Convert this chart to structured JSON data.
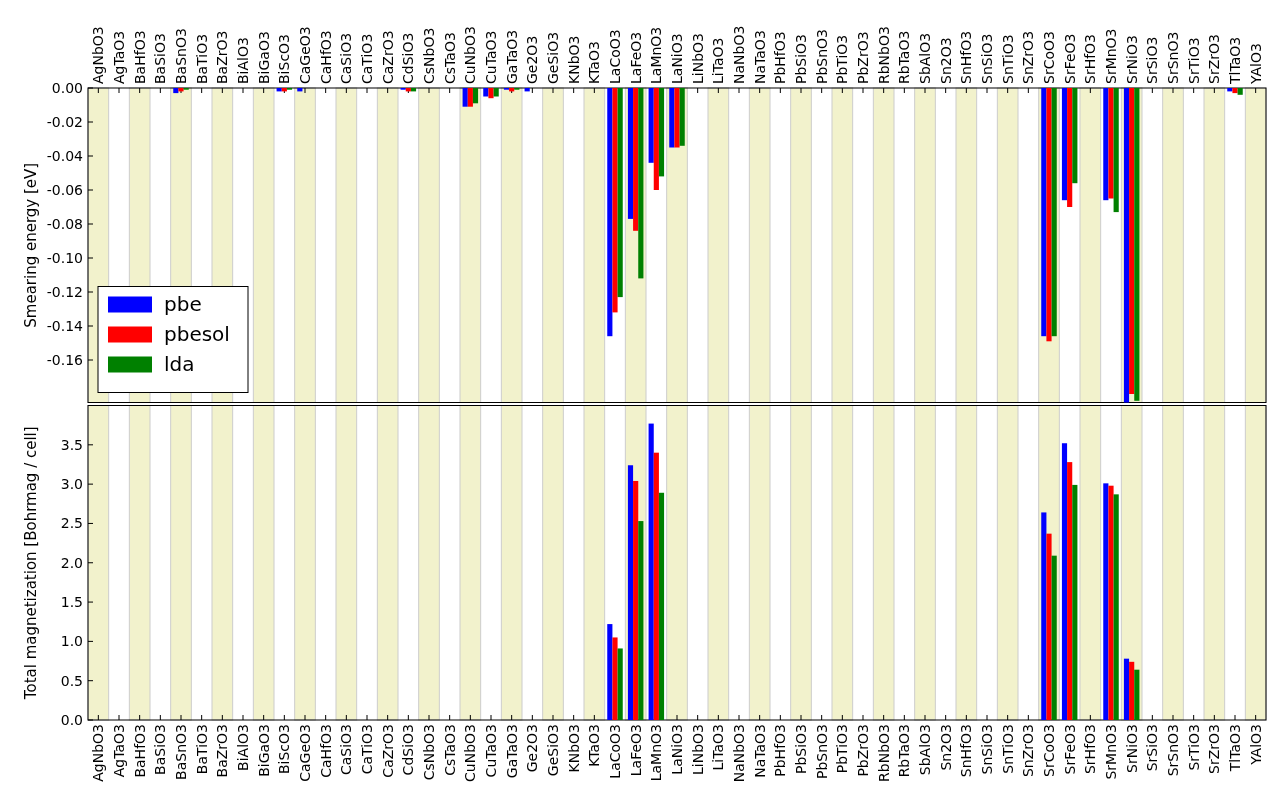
{
  "chart_data": [
    {
      "type": "bar",
      "ylabel": "Smearing energy [eV]",
      "categories": [
        "AgNbO3",
        "AgTaO3",
        "BaHfO3",
        "BaSiO3",
        "BaSnO3",
        "BaTiO3",
        "BaZrO3",
        "BiAlO3",
        "BiGaO3",
        "BiScO3",
        "CaGeO3",
        "CaHfO3",
        "CaSiO3",
        "CaTiO3",
        "CaZrO3",
        "CdSiO3",
        "CsNbO3",
        "CsTaO3",
        "CuNbO3",
        "CuTaO3",
        "GaTaO3",
        "Ge2O3",
        "GeSiO3",
        "KNbO3",
        "KTaO3",
        "LaCoO3",
        "LaFeO3",
        "LaMnO3",
        "LaNiO3",
        "LiNbO3",
        "LiTaO3",
        "NaNbO3",
        "NaTaO3",
        "PbHfO3",
        "PbSiO3",
        "PbSnO3",
        "PbTiO3",
        "PbZrO3",
        "RbNbO3",
        "RbTaO3",
        "SbAlO3",
        "Sn2O3",
        "SnHfO3",
        "SnSiO3",
        "SnTiO3",
        "SnZrO3",
        "SrCoO3",
        "SrFeO3",
        "SrHfO3",
        "SrMnO3",
        "SrNiO3",
        "SrSiO3",
        "SrSnO3",
        "SrTiO3",
        "SrZrO3",
        "TlTaO3",
        "YAlO3"
      ],
      "series": [
        {
          "name": "pbe",
          "color": "#0000ff",
          "values": [
            0,
            0,
            0,
            0,
            -0.003,
            0,
            0,
            0,
            0,
            -0.002,
            -0.002,
            0,
            0,
            0,
            0,
            -0.001,
            0,
            0,
            -0.011,
            -0.005,
            -0.001,
            -0.002,
            0,
            0,
            0,
            -0.146,
            -0.077,
            -0.044,
            -0.035,
            0,
            0,
            0,
            0,
            0,
            0,
            0,
            0,
            0,
            0,
            0,
            0,
            0,
            0,
            0,
            0,
            0,
            -0.146,
            -0.066,
            0,
            -0.066,
            -0.185,
            0,
            0,
            0,
            0,
            -0.002,
            0
          ]
        },
        {
          "name": "pbesol",
          "color": "#ff0000",
          "values": [
            0,
            0,
            0,
            0,
            -0.002,
            0,
            0,
            0,
            0,
            -0.002,
            0,
            0,
            0,
            0,
            0,
            -0.002,
            0,
            0,
            -0.011,
            -0.006,
            -0.002,
            0,
            0,
            0,
            0,
            -0.132,
            -0.084,
            -0.06,
            -0.035,
            0,
            0,
            0,
            0,
            0,
            0,
            0,
            0,
            0,
            0,
            0,
            0,
            0,
            0,
            0,
            0,
            0,
            -0.149,
            -0.07,
            0,
            -0.065,
            -0.18,
            0,
            0,
            0,
            0,
            -0.003,
            0
          ]
        },
        {
          "name": "lda",
          "color": "#008000",
          "values": [
            0,
            0,
            0,
            0,
            -0.001,
            0,
            0,
            0,
            0,
            -0.001,
            0,
            0,
            0,
            0,
            0,
            -0.002,
            0,
            0,
            -0.009,
            -0.005,
            -0.001,
            0,
            0,
            0,
            0,
            -0.123,
            -0.112,
            -0.052,
            -0.034,
            0,
            0,
            0,
            0,
            0,
            0,
            0,
            0,
            0,
            0,
            0,
            0,
            0,
            0,
            0,
            0,
            0,
            -0.146,
            -0.056,
            0,
            -0.073,
            -0.184,
            0,
            0,
            0,
            0,
            -0.004,
            0
          ]
        }
      ],
      "ylim": [
        -0.185,
        0
      ],
      "yticks": [
        {
          "value": -0.16,
          "label": "-0.16"
        },
        {
          "value": -0.14,
          "label": "-0.14"
        },
        {
          "value": -0.12,
          "label": "-0.12"
        },
        {
          "value": -0.1,
          "label": "-0.10"
        },
        {
          "value": -0.08,
          "label": "-0.08"
        },
        {
          "value": -0.06,
          "label": "-0.06"
        },
        {
          "value": -0.04,
          "label": "-0.04"
        },
        {
          "value": -0.02,
          "label": "-0.02"
        },
        {
          "value": 0,
          "label": "0.00"
        }
      ],
      "legend": "bottom left",
      "bands": [
        {
          "axis": "x",
          "from": "AgNbO3",
          "to": "AgNbO3",
          "color": "#f2f2cc"
        },
        {
          "axis": "x",
          "from": "BaHfO3",
          "to": "BaHfO3",
          "color": "#f2f2cc"
        },
        {
          "axis": "x",
          "from": "BaSnO3",
          "to": "BaSnO3",
          "color": "#f2f2cc"
        },
        {
          "axis": "x",
          "from": "BaZrO3",
          "to": "BaZrO3",
          "color": "#f2f2cc"
        },
        {
          "axis": "x",
          "from": "BiGaO3",
          "to": "BiGaO3",
          "color": "#f2f2cc"
        },
        {
          "axis": "x",
          "from": "CaGeO3",
          "to": "CaGeO3",
          "color": "#f2f2cc"
        },
        {
          "axis": "x",
          "from": "CaSiO3",
          "to": "CaSiO3",
          "color": "#f2f2cc"
        },
        {
          "axis": "x",
          "from": "CaZrO3",
          "to": "CaZrO3",
          "color": "#f2f2cc"
        },
        {
          "axis": "x",
          "from": "CsNbO3",
          "to": "CsNbO3",
          "color": "#f2f2cc"
        },
        {
          "axis": "x",
          "from": "CuNbO3",
          "to": "CuNbO3",
          "color": "#f2f2cc"
        },
        {
          "axis": "x",
          "from": "GaTaO3",
          "to": "GaTaO3",
          "color": "#f2f2cc"
        },
        {
          "axis": "x",
          "from": "GeSiO3",
          "to": "GeSiO3",
          "color": "#f2f2cc"
        },
        {
          "axis": "x",
          "from": "KTaO3",
          "to": "KTaO3",
          "color": "#f2f2cc"
        },
        {
          "axis": "x",
          "from": "LaFeO3",
          "to": "LaFeO3",
          "color": "#f2f2cc"
        },
        {
          "axis": "x",
          "from": "LaNiO3",
          "to": "LaNiO3",
          "color": "#f2f2cc"
        },
        {
          "axis": "x",
          "from": "LiTaO3",
          "to": "LiTaO3",
          "color": "#f2f2cc"
        },
        {
          "axis": "x",
          "from": "NaTaO3",
          "to": "NaTaO3",
          "color": "#f2f2cc"
        },
        {
          "axis": "x",
          "from": "PbSiO3",
          "to": "PbSiO3",
          "color": "#f2f2cc"
        },
        {
          "axis": "x",
          "from": "PbTiO3",
          "to": "PbTiO3",
          "color": "#f2f2cc"
        },
        {
          "axis": "x",
          "from": "RbNbO3",
          "to": "RbNbO3",
          "color": "#f2f2cc"
        },
        {
          "axis": "x",
          "from": "SbAlO3",
          "to": "SbAlO3",
          "color": "#f2f2cc"
        },
        {
          "axis": "x",
          "from": "SnHfO3",
          "to": "SnHfO3",
          "color": "#f2f2cc"
        },
        {
          "axis": "x",
          "from": "SnTiO3",
          "to": "SnTiO3",
          "color": "#f2f2cc"
        },
        {
          "axis": "x",
          "from": "SrCoO3",
          "to": "SrCoO3",
          "color": "#f2f2cc"
        },
        {
          "axis": "x",
          "from": "SrHfO3",
          "to": "SrHfO3",
          "color": "#f2f2cc"
        },
        {
          "axis": "x",
          "from": "SrNiO3",
          "to": "SrNiO3",
          "color": "#f2f2cc"
        },
        {
          "axis": "x",
          "from": "SrSnO3",
          "to": "SrSnO3",
          "color": "#f2f2cc"
        },
        {
          "axis": "x",
          "from": "SrZrO3",
          "to": "SrZrO3",
          "color": "#f2f2cc"
        },
        {
          "axis": "x",
          "from": "YAlO3",
          "to": "YAlO3",
          "color": "#f2f2cc"
        }
      ]
    },
    {
      "type": "bar",
      "ylabel": "Total magnetization [Bohrmag / cell]",
      "categories": [
        "AgNbO3",
        "AgTaO3",
        "BaHfO3",
        "BaSiO3",
        "BaSnO3",
        "BaTiO3",
        "BaZrO3",
        "BiAlO3",
        "BiGaO3",
        "BiScO3",
        "CaGeO3",
        "CaHfO3",
        "CaSiO3",
        "CaTiO3",
        "CaZrO3",
        "CdSiO3",
        "CsNbO3",
        "CsTaO3",
        "CuNbO3",
        "CuTaO3",
        "GaTaO3",
        "Ge2O3",
        "GeSiO3",
        "KNbO3",
        "KTaO3",
        "LaCoO3",
        "LaFeO3",
        "LaMnO3",
        "LaNiO3",
        "LiNbO3",
        "LiTaO3",
        "NaNbO3",
        "NaTaO3",
        "PbHfO3",
        "PbSiO3",
        "PbSnO3",
        "PbTiO3",
        "PbZrO3",
        "RbNbO3",
        "RbTaO3",
        "SbAlO3",
        "Sn2O3",
        "SnHfO3",
        "SnSiO3",
        "SnTiO3",
        "SnZrO3",
        "SrCoO3",
        "SrFeO3",
        "SrHfO3",
        "SrMnO3",
        "SrNiO3",
        "SrSiO3",
        "SrSnO3",
        "SrTiO3",
        "SrZrO3",
        "TlTaO3",
        "YAlO3"
      ],
      "series": [
        {
          "color": "#0000ff",
          "values": [
            0,
            0,
            0,
            0,
            0,
            0,
            0,
            0,
            0,
            0,
            0,
            0,
            0,
            0,
            0,
            0,
            0,
            0,
            0,
            0,
            0,
            0,
            0,
            0,
            0,
            1.22,
            3.24,
            3.77,
            0,
            0,
            0,
            0,
            0,
            0,
            0,
            0,
            0,
            0,
            0,
            0,
            0,
            0,
            0,
            0,
            0,
            0,
            2.64,
            3.52,
            0,
            3.01,
            0.78,
            0,
            0,
            0,
            0,
            0,
            0
          ]
        },
        {
          "color": "#ff0000",
          "values": [
            0,
            0,
            0,
            0,
            0,
            0,
            0,
            0,
            0,
            0,
            0,
            0,
            0,
            0,
            0,
            0,
            0,
            0,
            0,
            0,
            0,
            0,
            0,
            0,
            0,
            1.05,
            3.04,
            3.4,
            0,
            0,
            0,
            0,
            0,
            0,
            0,
            0,
            0,
            0,
            0,
            0,
            0,
            0,
            0,
            0,
            0,
            0,
            2.37,
            3.28,
            0,
            2.98,
            0.74,
            0,
            0,
            0,
            0,
            0,
            0
          ]
        },
        {
          "color": "#008000",
          "values": [
            0,
            0,
            0,
            0,
            0,
            0,
            0,
            0,
            0,
            0,
            0,
            0,
            0,
            0,
            0,
            0,
            0,
            0,
            0,
            0,
            0,
            0,
            0,
            0,
            0,
            0.91,
            2.53,
            2.89,
            0,
            0,
            0,
            0,
            0,
            0,
            0,
            0,
            0,
            0,
            0,
            0,
            0,
            0,
            0,
            0,
            0,
            0,
            2.09,
            2.99,
            0,
            2.87,
            0.64,
            0,
            0,
            0,
            0,
            0,
            0
          ]
        }
      ],
      "ylim": [
        0,
        4.0
      ],
      "yticks": [
        {
          "value": 0,
          "label": "0.0"
        },
        {
          "value": 0.5,
          "label": "0.5"
        },
        {
          "value": 1,
          "label": "1.0"
        },
        {
          "value": 1.5,
          "label": "1.5"
        },
        {
          "value": 2,
          "label": "2.0"
        },
        {
          "value": 2.5,
          "label": "2.5"
        },
        {
          "value": 3,
          "label": "3.0"
        },
        {
          "value": 3.5,
          "label": "3.5"
        }
      ],
      "bands": [
        {
          "axis": "x",
          "from": "AgNbO3",
          "to": "AgNbO3",
          "color": "#f2f2cc"
        },
        {
          "axis": "x",
          "from": "BaHfO3",
          "to": "BaHfO3",
          "color": "#f2f2cc"
        },
        {
          "axis": "x",
          "from": "BaSnO3",
          "to": "BaSnO3",
          "color": "#f2f2cc"
        },
        {
          "axis": "x",
          "from": "BaZrO3",
          "to": "BaZrO3",
          "color": "#f2f2cc"
        },
        {
          "axis": "x",
          "from": "BiGaO3",
          "to": "BiGaO3",
          "color": "#f2f2cc"
        },
        {
          "axis": "x",
          "from": "CaGeO3",
          "to": "CaGeO3",
          "color": "#f2f2cc"
        },
        {
          "axis": "x",
          "from": "CaSiO3",
          "to": "CaSiO3",
          "color": "#f2f2cc"
        },
        {
          "axis": "x",
          "from": "CaZrO3",
          "to": "CaZrO3",
          "color": "#f2f2cc"
        },
        {
          "axis": "x",
          "from": "CsNbO3",
          "to": "CsNbO3",
          "color": "#f2f2cc"
        },
        {
          "axis": "x",
          "from": "CuNbO3",
          "to": "CuNbO3",
          "color": "#f2f2cc"
        },
        {
          "axis": "x",
          "from": "GaTaO3",
          "to": "GaTaO3",
          "color": "#f2f2cc"
        },
        {
          "axis": "x",
          "from": "GeSiO3",
          "to": "GeSiO3",
          "color": "#f2f2cc"
        },
        {
          "axis": "x",
          "from": "KTaO3",
          "to": "KTaO3",
          "color": "#f2f2cc"
        },
        {
          "axis": "x",
          "from": "LaFeO3",
          "to": "LaFeO3",
          "color": "#f2f2cc"
        },
        {
          "axis": "x",
          "from": "LaNiO3",
          "to": "LaNiO3",
          "color": "#f2f2cc"
        },
        {
          "axis": "x",
          "from": "LiTaO3",
          "to": "LiTaO3",
          "color": "#f2f2cc"
        },
        {
          "axis": "x",
          "from": "NaTaO3",
          "to": "NaTaO3",
          "color": "#f2f2cc"
        },
        {
          "axis": "x",
          "from": "PbSiO3",
          "to": "PbSiO3",
          "color": "#f2f2cc"
        },
        {
          "axis": "x",
          "from": "PbTiO3",
          "to": "PbTiO3",
          "color": "#f2f2cc"
        },
        {
          "axis": "x",
          "from": "RbNbO3",
          "to": "RbNbO3",
          "color": "#f2f2cc"
        },
        {
          "axis": "x",
          "from": "SbAlO3",
          "to": "SbAlO3",
          "color": "#f2f2cc"
        },
        {
          "axis": "x",
          "from": "SnHfO3",
          "to": "SnHfO3",
          "color": "#f2f2cc"
        },
        {
          "axis": "x",
          "from": "SnTiO3",
          "to": "SnTiO3",
          "color": "#f2f2cc"
        },
        {
          "axis": "x",
          "from": "SrCoO3",
          "to": "SrCoO3",
          "color": "#f2f2cc"
        },
        {
          "axis": "x",
          "from": "SrHfO3",
          "to": "SrHfO3",
          "color": "#f2f2cc"
        },
        {
          "axis": "x",
          "from": "SrNiO3",
          "to": "SrNiO3",
          "color": "#f2f2cc"
        },
        {
          "axis": "x",
          "from": "SrSnO3",
          "to": "SrSnO3",
          "color": "#f2f2cc"
        },
        {
          "axis": "x",
          "from": "SrZrO3",
          "to": "SrZrO3",
          "color": "#f2f2cc"
        },
        {
          "axis": "x",
          "from": "YAlO3",
          "to": "YAlO3",
          "color": "#f2f2cc"
        }
      ]
    }
  ]
}
